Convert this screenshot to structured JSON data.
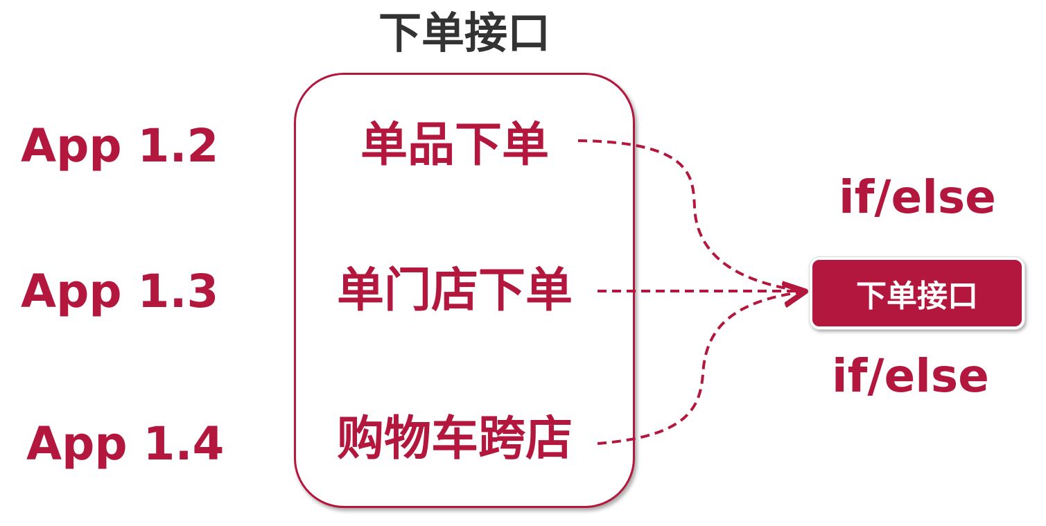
{
  "title": "下单接口",
  "apps": [
    {
      "label": "App 1.2"
    },
    {
      "label": "App 1.3"
    },
    {
      "label": "App 1.4"
    }
  ],
  "group": {
    "features": [
      {
        "label": "单品下单"
      },
      {
        "label": "单门店下单"
      },
      {
        "label": "购物车跨店"
      }
    ]
  },
  "target": {
    "label": "下单接口"
  },
  "conditions": {
    "top": "if/else",
    "bottom": "if/else"
  },
  "colors": {
    "accent": "#b3173d",
    "title": "#333333"
  }
}
